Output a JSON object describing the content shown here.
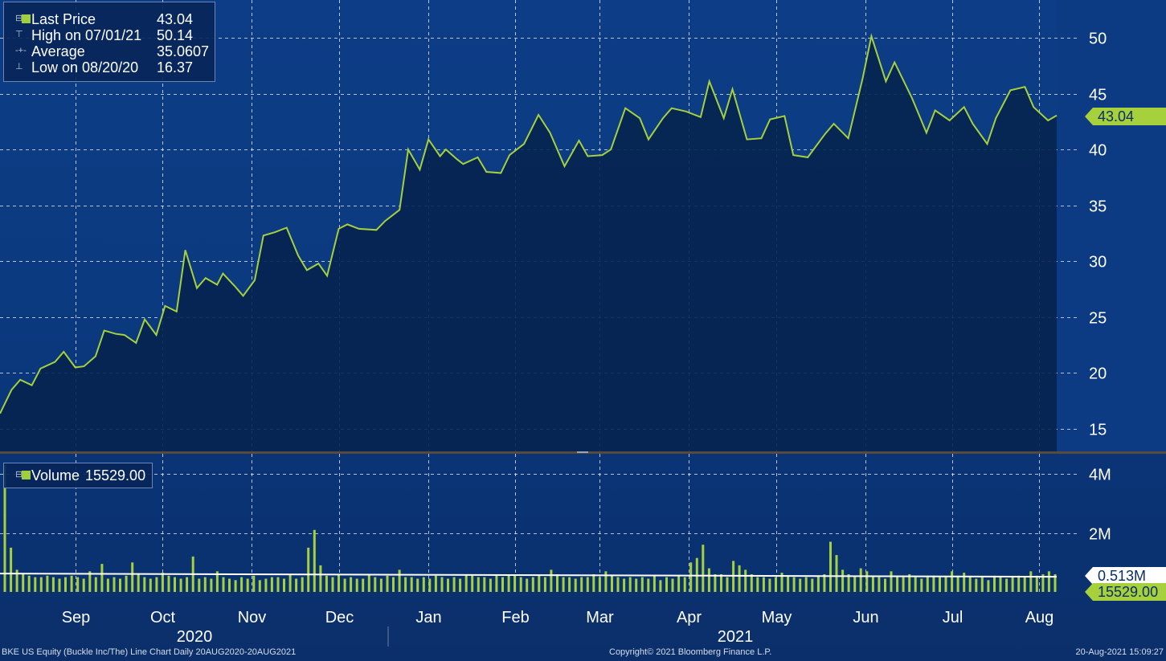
{
  "price_legend": {
    "last_label": "Last Price",
    "last_value": "43.04",
    "high_label": "High on 07/01/21",
    "high_value": "50.14",
    "avg_label": "Average",
    "avg_value": "35.0607",
    "low_label": "Low on 08/20/20",
    "low_value": "16.37"
  },
  "volume_legend": {
    "label": "Volume",
    "value": "15529.00"
  },
  "tags": {
    "last_price": "43.04",
    "volume_avg": "0.513M",
    "volume_last": "15529.00"
  },
  "year_labels": {
    "y2020": "2020",
    "y2021": "2021"
  },
  "footer": {
    "left": "BKE US Equity (Buckle Inc/The) Line Chart  Daily 20AUG2020-20AUG2021",
    "center": "Copyright© 2021 Bloomberg Finance L.P.",
    "right": "20-Aug-2021 15:09:27"
  },
  "colors": {
    "price_line": "#a6d03c",
    "volume_bar": "#a6d03c",
    "volume_avg": "#ffffff",
    "area_fill": "#06234f",
    "grid": "#ffffff"
  },
  "chart_data": [
    {
      "type": "area",
      "series": [
        {
          "name": "Last Price"
        }
      ],
      "ylim": [
        13,
        53
      ],
      "y_ticks": [
        15,
        20,
        25,
        30,
        35,
        40,
        45,
        50
      ],
      "grid": true,
      "x": [
        "2020-08-20",
        "2020-08-24",
        "2020-08-27",
        "2020-08-31",
        "2020-09-03",
        "2020-09-08",
        "2020-09-11",
        "2020-09-15",
        "2020-09-18",
        "2020-09-22",
        "2020-09-25",
        "2020-09-29",
        "2020-10-02",
        "2020-10-06",
        "2020-10-09",
        "2020-10-13",
        "2020-10-16",
        "2020-10-20",
        "2020-10-23",
        "2020-10-27",
        "2020-10-30",
        "2020-11-03",
        "2020-11-05",
        "2020-11-09",
        "2020-11-12",
        "2020-11-16",
        "2020-11-19",
        "2020-11-23",
        "2020-11-27",
        "2020-12-01",
        "2020-12-04",
        "2020-12-08",
        "2020-12-11",
        "2020-12-15",
        "2020-12-18",
        "2020-12-22",
        "2020-12-28",
        "2020-12-31",
        "2021-01-05",
        "2021-01-08",
        "2021-01-12",
        "2021-01-15",
        "2021-01-19",
        "2021-01-21",
        "2021-01-25",
        "2021-01-27",
        "2021-02-01",
        "2021-02-04",
        "2021-02-09",
        "2021-02-12",
        "2021-02-17",
        "2021-02-22",
        "2021-02-26",
        "2021-03-03",
        "2021-03-08",
        "2021-03-11",
        "2021-03-16",
        "2021-03-19",
        "2021-03-24",
        "2021-03-29",
        "2021-04-01",
        "2021-04-06",
        "2021-04-09",
        "2021-04-14",
        "2021-04-19",
        "2021-04-22",
        "2021-04-27",
        "2021-04-30",
        "2021-05-05",
        "2021-05-10",
        "2021-05-13",
        "2021-05-18",
        "2021-05-21",
        "2021-05-26",
        "2021-06-01",
        "2021-06-04",
        "2021-06-09",
        "2021-06-14",
        "2021-06-17",
        "2021-06-22",
        "2021-06-25",
        "2021-07-01",
        "2021-07-06",
        "2021-07-09",
        "2021-07-14",
        "2021-07-19",
        "2021-07-22",
        "2021-07-27",
        "2021-07-30",
        "2021-08-04",
        "2021-08-09",
        "2021-08-12",
        "2021-08-17",
        "2021-08-20"
      ],
      "values": [
        16.37,
        18.5,
        19.4,
        18.9,
        20.4,
        21.0,
        21.9,
        20.5,
        20.6,
        21.5,
        23.8,
        23.5,
        23.4,
        22.7,
        24.8,
        23.4,
        26.0,
        25.5,
        31.0,
        27.6,
        28.5,
        27.9,
        28.9,
        27.8,
        26.9,
        28.3,
        32.3,
        32.6,
        33.0,
        30.5,
        29.2,
        29.8,
        28.7,
        32.9,
        33.3,
        32.9,
        32.8,
        33.6,
        34.6,
        40.0,
        38.2,
        40.9,
        39.4,
        40.0,
        39.1,
        38.7,
        39.3,
        38.0,
        37.9,
        39.5,
        40.5,
        43.1,
        41.5,
        38.5,
        40.8,
        39.4,
        39.5,
        40.0,
        43.7,
        42.8,
        40.9,
        42.8,
        43.7,
        43.4,
        42.9,
        46.1,
        42.8,
        45.4,
        40.9,
        41.0,
        42.7,
        43.0,
        39.5,
        39.3,
        41.4,
        42.3,
        41.0,
        46.4,
        50.14,
        46.1,
        47.8,
        44.6,
        41.5,
        43.5,
        42.6,
        43.8,
        42.3,
        40.5,
        42.8,
        45.3,
        45.6,
        43.8,
        42.6,
        43.04
      ]
    },
    {
      "type": "bar",
      "series": [
        {
          "name": "Volume"
        },
        {
          "name": "Average"
        }
      ],
      "ylim": [
        0,
        4.5
      ],
      "y_ticks": [
        2,
        4
      ],
      "y_tick_labels": [
        "2M",
        "4M"
      ],
      "grid": true,
      "values_millions": [
        4.3,
        1.5,
        0.75,
        0.6,
        0.55,
        0.5,
        0.5,
        0.55,
        0.5,
        0.45,
        0.5,
        0.55,
        0.5,
        0.45,
        0.7,
        0.5,
        0.95,
        0.45,
        0.5,
        0.45,
        0.55,
        1.0,
        0.6,
        0.5,
        0.45,
        0.5,
        0.65,
        0.55,
        0.5,
        0.45,
        0.5,
        1.2,
        0.45,
        0.5,
        0.45,
        0.7,
        0.5,
        0.45,
        0.4,
        0.5,
        0.45,
        0.55,
        0.4,
        0.45,
        0.5,
        0.5,
        0.45,
        0.6,
        0.45,
        0.5,
        1.5,
        2.1,
        0.9,
        0.55,
        0.5,
        0.6,
        0.45,
        0.5,
        0.45,
        0.45,
        0.6,
        0.5,
        0.45,
        0.55,
        0.5,
        0.75,
        0.5,
        0.5,
        0.45,
        0.5,
        0.45,
        0.55,
        0.5,
        0.45,
        0.5,
        0.45,
        0.6,
        0.55,
        0.5,
        0.5,
        0.45,
        0.55,
        0.5,
        0.6,
        0.55,
        0.5,
        0.45,
        0.5,
        0.55,
        0.5,
        0.75,
        0.6,
        0.5,
        0.5,
        0.45,
        0.5,
        0.5,
        0.6,
        0.5,
        0.7,
        0.55,
        0.5,
        0.45,
        0.5,
        0.45,
        0.5,
        0.45,
        0.55,
        0.4,
        0.5,
        0.45,
        0.55,
        0.5,
        1.0,
        1.15,
        1.6,
        0.8,
        0.6,
        0.6,
        0.5,
        1.05,
        0.9,
        0.75,
        0.6,
        0.5,
        0.5,
        0.45,
        0.5,
        0.65,
        0.55,
        0.5,
        0.45,
        0.5,
        0.45,
        0.55,
        0.6,
        1.7,
        1.25,
        0.75,
        0.6,
        0.55,
        0.8,
        0.7,
        0.55,
        0.5,
        0.45,
        0.7,
        0.55,
        0.5,
        0.6,
        0.5,
        0.45,
        0.5,
        0.55,
        0.5,
        0.5,
        0.7,
        0.55,
        0.65,
        0.5,
        0.45,
        0.5,
        0.4,
        0.55,
        0.5,
        0.45,
        0.5,
        0.55,
        0.5,
        0.7,
        0.55,
        0.6,
        0.7,
        0.6
      ],
      "average_millions": 0.513
    }
  ]
}
